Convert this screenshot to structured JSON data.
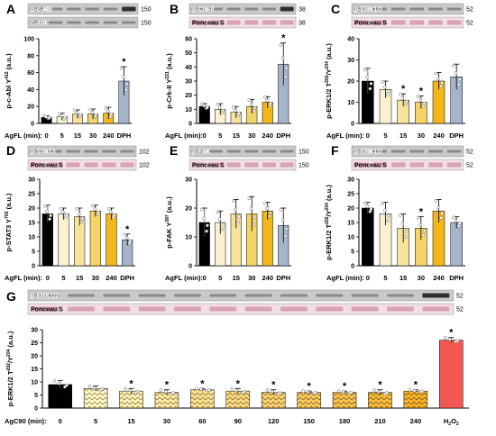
{
  "figure": {
    "x_axis_prefix": "AgFL (min):",
    "x_axis_prefix_g": "AgC90 (min):",
    "colors": {
      "ctrl": "#000000",
      "t5": "#fbf1cf",
      "t15": "#f8e39c",
      "t30": "#f5d466",
      "t240": "#f1b71b",
      "dph": "#a5b4c9",
      "h2o2": "#f15852",
      "ponceau": "#d9a3b1",
      "blot": "#9b9b9b"
    }
  },
  "chart_data": [
    {
      "panel": "A",
      "type": "bar",
      "blots": [
        {
          "label": "p-c-Abl",
          "mw": "150",
          "style": "wb",
          "highlight": [
            5
          ]
        },
        {
          "label": "c-Abl",
          "mw": "150",
          "style": "wb"
        }
      ],
      "categories": [
        "0",
        "5",
        "15",
        "30",
        "240",
        "DPH"
      ],
      "values": [
        7,
        8,
        11,
        11,
        12,
        50
      ],
      "errors": [
        2,
        4,
        5,
        6,
        7,
        17
      ],
      "significant": [
        5
      ],
      "ylabel": "p-c-Abl Y",
      "ylabel_sup": "412",
      "ylabel_unit": " (a.u.)",
      "ylim": [
        0,
        100
      ],
      "yticks": [
        0,
        20,
        40,
        60,
        80,
        100
      ]
    },
    {
      "panel": "B",
      "type": "bar",
      "blots": [
        {
          "label": "p-Crk-II",
          "mw": "38",
          "style": "wb",
          "highlight": [
            5
          ]
        },
        {
          "label": "Ponceau S",
          "mw": "38",
          "style": "ponceau"
        }
      ],
      "categories": [
        "0",
        "5",
        "15",
        "30",
        "240",
        "DPH"
      ],
      "values": [
        12,
        10,
        8,
        12,
        15,
        42
      ],
      "errors": [
        2,
        4,
        4,
        5,
        4,
        15
      ],
      "significant": [
        5
      ],
      "ylabel": "p-Crk-II Y",
      "ylabel_sup": "221",
      "ylabel_unit": " (a.u.)",
      "ylim": [
        0,
        60
      ],
      "yticks": [
        0,
        10,
        20,
        30,
        40,
        50,
        60
      ]
    },
    {
      "panel": "C",
      "type": "bar",
      "blots": [
        {
          "label": "p-ERK1/2",
          "mw": "52",
          "style": "wb"
        },
        {
          "label": "Ponceau S",
          "mw": "52",
          "style": "ponceau"
        }
      ],
      "categories": [
        "0",
        "5",
        "15",
        "30",
        "240",
        "DPH"
      ],
      "values": [
        20,
        16,
        11,
        10,
        20,
        22
      ],
      "errors": [
        6,
        4,
        3,
        3,
        4,
        6
      ],
      "significant": [
        2,
        3
      ],
      "ylabel": "p-ERK1/2 T",
      "ylabel_sup": "202",
      "ylabel_mid": "/Y",
      "ylabel_sup2": "204",
      "ylabel_unit": " (a.u.)",
      "ylim": [
        0,
        40
      ],
      "yticks": [
        0,
        10,
        20,
        30,
        40
      ]
    },
    {
      "panel": "D",
      "type": "bar",
      "blots": [
        {
          "label": "p-STAT3",
          "mw": "102",
          "style": "wb"
        },
        {
          "label": "Ponceau S",
          "mw": "102",
          "style": "ponceau"
        }
      ],
      "categories": [
        "0",
        "5",
        "15",
        "30",
        "240",
        "DPH"
      ],
      "values": [
        18,
        18,
        17,
        19,
        18,
        9
      ],
      "errors": [
        3,
        2,
        3,
        2,
        2,
        2
      ],
      "significant": [
        5
      ],
      "ylabel": "p-STAT3 Y",
      "ylabel_sup": "705",
      "ylabel_unit": " (a.u.)",
      "ylim": [
        0,
        30
      ],
      "yticks": [
        0,
        5,
        10,
        15,
        20,
        25,
        30
      ]
    },
    {
      "panel": "E",
      "type": "bar",
      "blots": [
        {
          "label": "p-FAK",
          "mw": "150",
          "style": "wb"
        },
        {
          "label": "Ponceau S",
          "mw": "150",
          "style": "ponceau"
        }
      ],
      "categories": [
        "0",
        "5",
        "15",
        "30",
        "240",
        "DPH"
      ],
      "values": [
        15,
        15,
        18,
        18,
        19,
        14
      ],
      "errors": [
        5,
        4,
        5,
        6,
        3,
        6
      ],
      "significant": [],
      "ylabel": "p-FAK Y",
      "ylabel_sup": "397",
      "ylabel_unit": " (a.u.)",
      "ylim": [
        0,
        30
      ],
      "yticks": [
        0,
        10,
        20,
        30
      ]
    },
    {
      "panel": "F",
      "type": "bar",
      "blots": [
        {
          "label": "p-ERK1/2",
          "mw": "52",
          "style": "wb"
        },
        {
          "label": "Ponceau S",
          "mw": "52",
          "style": "ponceau"
        }
      ],
      "categories": [
        "0",
        "5",
        "15",
        "30",
        "240",
        "DPH"
      ],
      "values": [
        20,
        18,
        13,
        13,
        19,
        15
      ],
      "errors": [
        2,
        4,
        5,
        4,
        4,
        2
      ],
      "significant": [
        3
      ],
      "ylabel": "p-ERK1/2 T",
      "ylabel_sup": "202",
      "ylabel_mid": "/Y",
      "ylabel_sup2": "204",
      "ylabel_unit": " (a.u.)",
      "ylim": [
        0,
        30
      ],
      "yticks": [
        0,
        5,
        10,
        15,
        20,
        25,
        30
      ]
    },
    {
      "panel": "G",
      "type": "bar",
      "blots": [
        {
          "label": "p-ERK1/2",
          "mw": "52",
          "style": "wb",
          "highlight": [
            11
          ]
        },
        {
          "label": "Ponceau S",
          "mw": "52",
          "style": "ponceau"
        }
      ],
      "categories": [
        "0",
        "5",
        "15",
        "30",
        "60",
        "90",
        "120",
        "150",
        "180",
        "210",
        "240",
        "H2O2"
      ],
      "values": [
        9,
        7.5,
        6.5,
        6,
        7,
        6.5,
        6,
        6,
        6,
        6,
        6.5,
        26
      ],
      "errors": [
        1.5,
        1,
        1,
        1,
        0.5,
        1,
        1,
        0.5,
        0.5,
        1,
        0.5,
        1
      ],
      "significant": [
        2,
        3,
        4,
        5,
        6,
        7,
        8,
        9,
        10,
        11
      ],
      "ylabel": "p-ERK1/2 T",
      "ylabel_sup": "202",
      "ylabel_mid": "/Y",
      "ylabel_sup2": "204",
      "ylabel_unit": " (a.u.)",
      "ylim": [
        0,
        30
      ],
      "yticks": [
        0,
        5,
        10,
        15,
        20,
        25,
        30
      ]
    }
  ]
}
